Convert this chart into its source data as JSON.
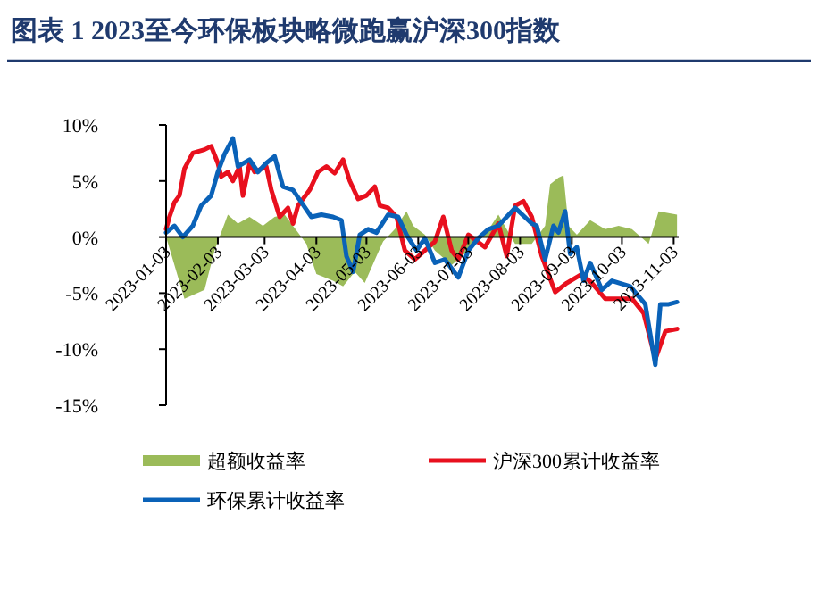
{
  "chart_data": {
    "type": "line",
    "title": "图表 1   2023至今环保板块略微跑赢沪深300指数",
    "xlim": [
      "2023-01-03",
      "2023-11-06"
    ],
    "xticks": [
      "2023-01-03",
      "2023-02-03",
      "2023-03-03",
      "2023-04-03",
      "2023-05-03",
      "2023-06-03",
      "2023-07-03",
      "2023-08-03",
      "2023-09-03",
      "2023-10-03",
      "2023-11-03"
    ],
    "ylim": [
      -15,
      10
    ],
    "yticks": [
      {
        "value": -15,
        "label": "-15%"
      },
      {
        "value": -10,
        "label": "-10%"
      },
      {
        "value": -5,
        "label": "-5%"
      },
      {
        "value": 0,
        "label": "0%"
      },
      {
        "value": 5,
        "label": "5%"
      },
      {
        "value": 10,
        "label": "10%"
      }
    ],
    "grid": false,
    "legend": "bottom",
    "series": [
      {
        "name": "超额收益率",
        "type": "area",
        "color": "#9bbb59",
        "x": [
          "2023-01-03",
          "2023-01-14",
          "2023-01-26",
          "2023-02-01",
          "2023-02-04",
          "2023-02-09",
          "2023-02-15",
          "2023-02-22",
          "2023-03-02",
          "2023-03-09",
          "2023-03-15",
          "2023-03-23",
          "2023-03-28",
          "2023-04-03",
          "2023-04-13",
          "2023-04-19",
          "2023-04-26",
          "2023-05-02",
          "2023-05-09",
          "2023-05-13",
          "2023-05-20",
          "2023-05-27",
          "2023-05-31",
          "2023-06-07",
          "2023-06-13",
          "2023-06-23",
          "2023-07-03",
          "2023-07-13",
          "2023-07-21",
          "2023-07-31",
          "2023-08-10",
          "2023-08-18",
          "2023-08-21",
          "2023-08-26",
          "2023-08-29",
          "2023-09-01",
          "2023-09-06",
          "2023-09-14",
          "2023-09-23",
          "2023-10-01",
          "2023-10-09",
          "2023-10-19",
          "2023-10-25",
          "2023-11-05"
        ],
        "values": [
          0,
          -5.5,
          -4.7,
          -1.2,
          0,
          2.0,
          1.2,
          1.8,
          1.0,
          1.8,
          2.0,
          0.4,
          -0.6,
          -3.3,
          -3.9,
          -4.4,
          -3.1,
          -4.1,
          -1.7,
          -0.4,
          0.7,
          2.3,
          1.0,
          0.2,
          -1.2,
          -2.5,
          -1.2,
          0.2,
          2.0,
          -0.6,
          -0.6,
          1.0,
          4.7,
          5.3,
          5.5,
          1.0,
          0.2,
          1.5,
          0.7,
          1.0,
          0.7,
          -0.6,
          2.3,
          2.0
        ]
      },
      {
        "name": "沪深300累计收益率",
        "color": "#e8101e",
        "x": [
          "2023-01-03",
          "2023-01-05",
          "2023-01-08",
          "2023-01-11",
          "2023-01-14",
          "2023-01-19",
          "2023-01-26",
          "2023-01-30",
          "2023-02-03",
          "2023-02-05",
          "2023-02-09",
          "2023-02-12",
          "2023-02-16",
          "2023-02-18",
          "2023-02-22",
          "2023-02-25",
          "2023-03-04",
          "2023-03-07",
          "2023-03-12",
          "2023-03-17",
          "2023-03-20",
          "2023-03-23",
          "2023-03-30",
          "2023-04-04",
          "2023-04-09",
          "2023-04-14",
          "2023-04-19",
          "2023-04-23",
          "2023-04-28",
          "2023-05-03",
          "2023-05-08",
          "2023-05-11",
          "2023-05-16",
          "2023-05-21",
          "2023-05-26",
          "2023-06-01",
          "2023-06-07",
          "2023-06-13",
          "2023-06-18",
          "2023-06-23",
          "2023-06-27",
          "2023-07-03",
          "2023-07-13",
          "2023-07-21",
          "2023-07-26",
          "2023-07-31",
          "2023-08-05",
          "2023-08-10",
          "2023-08-16",
          "2023-08-24",
          "2023-08-31",
          "2023-09-09",
          "2023-09-15",
          "2023-09-23",
          "2023-10-01",
          "2023-10-09",
          "2023-10-16",
          "2023-10-23",
          "2023-10-29",
          "2023-11-05"
        ],
        "values": [
          0.7,
          1.8,
          3.1,
          3.7,
          6.1,
          7.5,
          7.8,
          8.1,
          6.6,
          5.4,
          5.8,
          5.0,
          6.3,
          3.7,
          6.6,
          5.8,
          6.3,
          4.2,
          1.8,
          2.6,
          1.2,
          2.8,
          4.2,
          5.8,
          6.3,
          5.7,
          6.9,
          5.0,
          3.4,
          3.7,
          4.5,
          2.8,
          2.6,
          1.8,
          -1.2,
          -2.0,
          -1.2,
          -0.4,
          1.8,
          -1.2,
          -2.0,
          0.2,
          -0.9,
          1.2,
          -1.7,
          2.8,
          3.2,
          1.8,
          -1.7,
          -4.9,
          -4.1,
          -3.3,
          -4.1,
          -5.5,
          -5.5,
          -5.5,
          -6.8,
          -10.9,
          -8.4,
          -8.2
        ]
      },
      {
        "name": "环保累计收益率",
        "color": "#0a62b8",
        "x": [
          "2023-01-03",
          "2023-01-08",
          "2023-01-13",
          "2023-01-19",
          "2023-01-24",
          "2023-01-30",
          "2023-02-03",
          "2023-02-07",
          "2023-02-12",
          "2023-02-15",
          "2023-02-22",
          "2023-02-27",
          "2023-03-04",
          "2023-03-09",
          "2023-03-14",
          "2023-03-20",
          "2023-03-25",
          "2023-03-31",
          "2023-04-06",
          "2023-04-13",
          "2023-04-18",
          "2023-04-21",
          "2023-04-25",
          "2023-04-29",
          "2023-05-04",
          "2023-05-09",
          "2023-05-16",
          "2023-05-22",
          "2023-05-27",
          "2023-06-02",
          "2023-06-07",
          "2023-06-13",
          "2023-06-19",
          "2023-06-27",
          "2023-07-03",
          "2023-07-09",
          "2023-07-15",
          "2023-07-21",
          "2023-07-31",
          "2023-08-10",
          "2023-08-13",
          "2023-08-18",
          "2023-08-23",
          "2023-08-26",
          "2023-08-30",
          "2023-09-02",
          "2023-09-06",
          "2023-09-10",
          "2023-09-14",
          "2023-09-21",
          "2023-09-27",
          "2023-10-08",
          "2023-10-17",
          "2023-10-23",
          "2023-10-26",
          "2023-10-31",
          "2023-11-05"
        ],
        "values": [
          0.4,
          1.0,
          0,
          1.0,
          2.8,
          3.7,
          5.8,
          7.4,
          8.8,
          6.3,
          6.9,
          5.8,
          6.6,
          7.2,
          4.5,
          4.2,
          3.1,
          1.8,
          2.0,
          1.8,
          1.5,
          -1.7,
          -3.1,
          0.2,
          0.7,
          0.4,
          2.0,
          1.8,
          0.2,
          -1.2,
          -0.1,
          -2.3,
          -2.0,
          -3.6,
          -1.2,
          -0.1,
          0.7,
          1.0,
          2.6,
          1.2,
          1.0,
          -2.0,
          1.0,
          0.4,
          2.3,
          -1.5,
          -0.9,
          -3.9,
          -2.3,
          -4.7,
          -3.9,
          -4.4,
          -6.0,
          -11.4,
          -6.0,
          -6.0,
          -5.8
        ]
      }
    ]
  }
}
